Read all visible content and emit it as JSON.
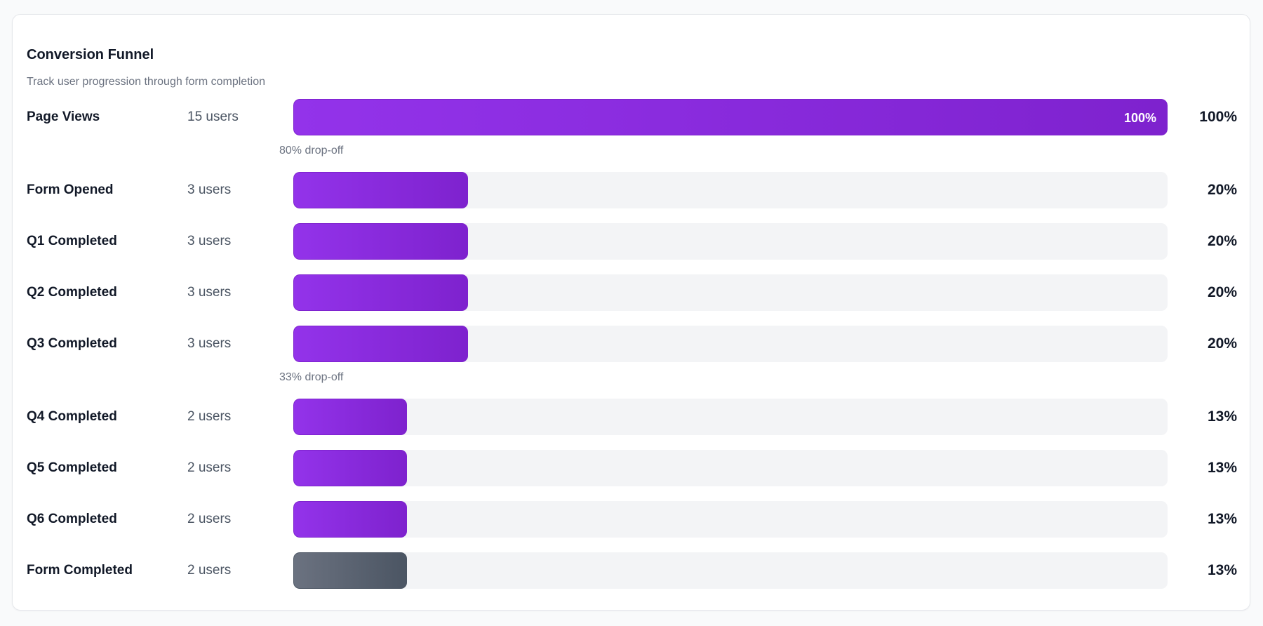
{
  "title": "Conversion Funnel",
  "subtitle": "Track user progression through form completion",
  "colors": {
    "primary_start": "#9333ea",
    "primary_end": "#7e22ce",
    "final_start": "#6b7280",
    "final_end": "#4b5563",
    "track": "#f3f4f6"
  },
  "chart_data": {
    "type": "bar",
    "title": "Conversion Funnel",
    "subtitle": "Track user progression through form completion",
    "orientation": "horizontal",
    "categories": [
      "Page Views",
      "Form Opened",
      "Q1 Completed",
      "Q2 Completed",
      "Q3 Completed",
      "Q4 Completed",
      "Q5 Completed",
      "Q6 Completed",
      "Form Completed"
    ],
    "users": [
      15,
      3,
      3,
      3,
      3,
      2,
      2,
      2,
      2
    ],
    "values": [
      100,
      20,
      20,
      20,
      20,
      13,
      13,
      13,
      13
    ],
    "user_labels": [
      "15 users",
      "3 users",
      "3 users",
      "3 users",
      "3 users",
      "2 users",
      "2 users",
      "2 users",
      "2 users"
    ],
    "percent_labels": [
      "100%",
      "20%",
      "20%",
      "20%",
      "20%",
      "13%",
      "13%",
      "13%",
      "13%"
    ],
    "bar_labels": [
      "100%",
      "",
      "",
      "",
      "",
      "",
      "",
      "",
      ""
    ],
    "dropoffs": [
      {
        "after": "Page Views",
        "label": "80% drop-off"
      },
      {
        "after": "Q3 Completed",
        "label": "33% drop-off"
      }
    ],
    "ylim": [
      0,
      100
    ]
  }
}
